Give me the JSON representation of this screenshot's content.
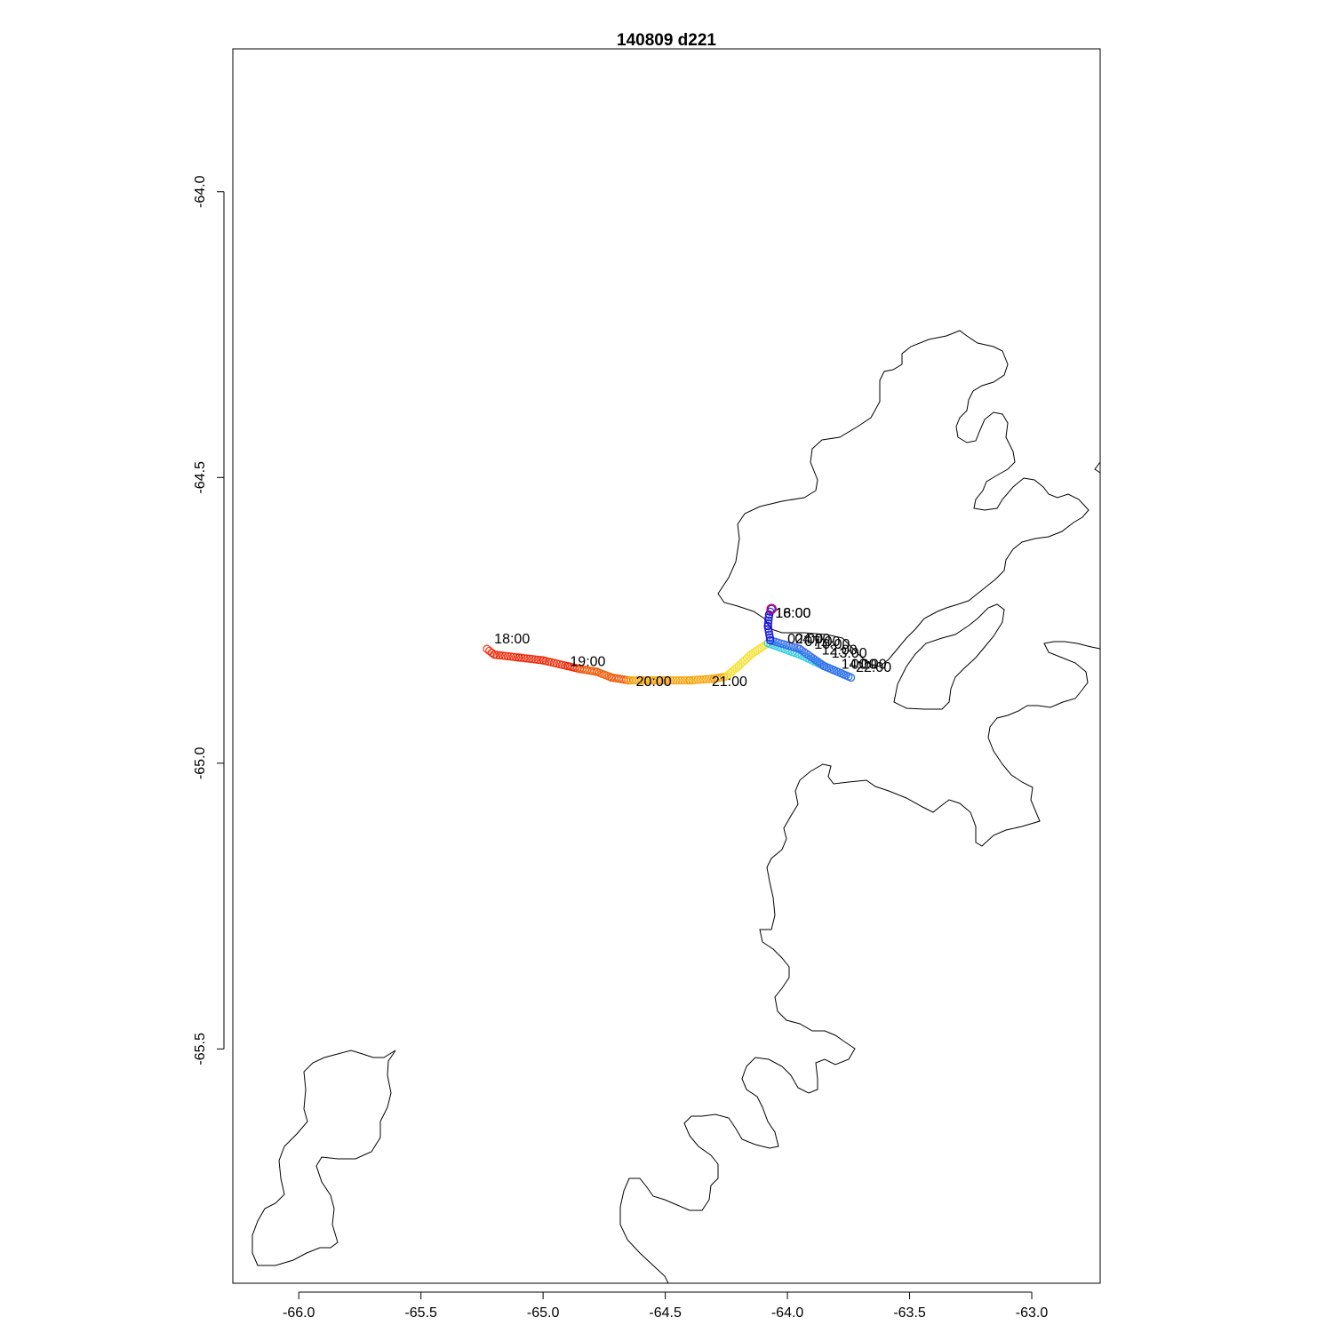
{
  "chart_data": {
    "type": "scatter",
    "title": "140809   d221",
    "xlabel": "",
    "ylabel": "",
    "xlim": [
      -66.27,
      -62.72
    ],
    "ylim": [
      -65.91,
      -63.75
    ],
    "x_ticks": [
      -66.0,
      -65.5,
      -65.0,
      -64.5,
      -64.0,
      -63.5,
      -63.0
    ],
    "x_tick_labels": [
      "-66.0",
      "-65.5",
      "-65.0",
      "-64.5",
      "-64.0",
      "-63.5",
      "-63.0"
    ],
    "y_ticks": [
      -64.0,
      -64.5,
      -65.0,
      -65.5
    ],
    "y_tick_labels": [
      "-64.0",
      "-64.5",
      "-65.0",
      "-65.5"
    ],
    "grid": false,
    "legend": "none",
    "track": {
      "description": "Glider track colored by time (red -> orange -> yellow -> cyan -> blue)",
      "segments": [
        {
          "color": "#ee2200",
          "points": [
            [
              -65.23,
              -64.8
            ],
            [
              -65.2,
              -64.81
            ],
            [
              -65.1,
              -64.815
            ],
            [
              -65.0,
              -64.82
            ],
            [
              -64.9,
              -64.83
            ],
            [
              -64.85,
              -64.835
            ]
          ]
        },
        {
          "color": "#ee5500",
          "points": [
            [
              -64.85,
              -64.835
            ],
            [
              -64.78,
              -64.84
            ],
            [
              -64.72,
              -64.85
            ],
            [
              -64.65,
              -64.855
            ]
          ]
        },
        {
          "color": "#f7a000",
          "points": [
            [
              -64.65,
              -64.855
            ],
            [
              -64.5,
              -64.855
            ],
            [
              -64.4,
              -64.855
            ],
            [
              -64.3,
              -64.852
            ],
            [
              -64.25,
              -64.848
            ]
          ]
        },
        {
          "color": "#f5e030",
          "points": [
            [
              -64.25,
              -64.848
            ],
            [
              -64.2,
              -64.83
            ],
            [
              -64.15,
              -64.81
            ],
            [
              -64.08,
              -64.79
            ]
          ]
        },
        {
          "color": "#33ccdd",
          "points": [
            [
              -64.08,
              -64.79
            ],
            [
              -63.95,
              -64.81
            ],
            [
              -63.85,
              -64.83
            ],
            [
              -63.74,
              -64.85
            ]
          ]
        },
        {
          "color": "#3366ee",
          "points": [
            [
              -63.74,
              -64.85
            ],
            [
              -63.85,
              -64.83
            ],
            [
              -63.95,
              -64.8
            ],
            [
              -64.07,
              -64.785
            ]
          ]
        },
        {
          "color": "#1111dd",
          "points": [
            [
              -64.07,
              -64.785
            ],
            [
              -64.08,
              -64.76
            ],
            [
              -64.075,
              -64.74
            ],
            [
              -64.065,
              -64.73
            ]
          ]
        }
      ]
    },
    "time_labels": [
      {
        "text": "18:00",
        "x": -65.2,
        "y": -64.79
      },
      {
        "text": "19:00",
        "x": -64.89,
        "y": -64.83
      },
      {
        "text": "20:00",
        "x": -64.62,
        "y": -64.865
      },
      {
        "text": "21:00",
        "x": -64.31,
        "y": -64.865
      },
      {
        "text": "16:00",
        "x": -64.05,
        "y": -64.745
      },
      {
        "text": "18:00",
        "x": -64.05,
        "y": -64.745
      },
      {
        "text": "02:00",
        "x": -64.0,
        "y": -64.79
      },
      {
        "text": "04:00",
        "x": -63.97,
        "y": -64.79
      },
      {
        "text": "07:00",
        "x": -63.93,
        "y": -64.795
      },
      {
        "text": "10:00",
        "x": -63.89,
        "y": -64.8
      },
      {
        "text": "12:00",
        "x": -63.86,
        "y": -64.81
      },
      {
        "text": "13:00",
        "x": -63.82,
        "y": -64.815
      },
      {
        "text": "14:00",
        "x": -63.78,
        "y": -64.835
      },
      {
        "text": "00:00",
        "x": -63.74,
        "y": -64.835
      },
      {
        "text": "22:00",
        "x": -63.72,
        "y": -64.84
      }
    ]
  }
}
